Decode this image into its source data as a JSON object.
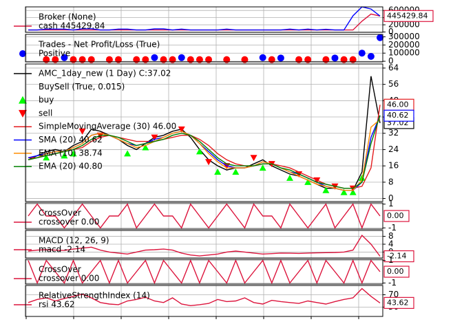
{
  "chart_data": [
    {
      "type": "line",
      "ylim": [
        -10000,
        700000
      ],
      "yticks": [
        0,
        200000,
        400000,
        600000
      ],
      "grid": true,
      "series": [
        {
          "heading": "Broker (None)",
          "name": "cash 445429.84",
          "color": "#dc143c",
          "marker": "line",
          "end_label": "445429.84",
          "values": [
            55000,
            55000,
            55000,
            55000,
            55000,
            55000,
            55000,
            55000,
            55000,
            55000,
            55000,
            55000,
            55000,
            55000,
            55000,
            55000,
            55000,
            55000,
            55000,
            55000,
            55000,
            55000,
            55000,
            55000,
            55000,
            55000,
            55000,
            55000,
            55000,
            55000,
            55000,
            55000,
            55000,
            55000,
            55000,
            55000,
            55000,
            300000,
            500000,
            445429.84
          ]
        },
        {
          "color": "#0000ff",
          "marker": "line",
          "values": [
            55000,
            55000,
            80000,
            80000,
            80000,
            55000,
            90000,
            90000,
            55000,
            55000,
            80000,
            80000,
            55000,
            55000,
            85000,
            85000,
            55000,
            80000,
            55000,
            55000,
            55000,
            55000,
            80000,
            55000,
            55000,
            55000,
            55000,
            55000,
            55000,
            80000,
            55000,
            80000,
            55000,
            75000,
            55000,
            55000,
            450000,
            700000,
            640000,
            445429.84
          ]
        }
      ]
    },
    {
      "type": "scatter",
      "ylim": [
        -8000,
        330000
      ],
      "yticks": [
        0,
        100000,
        200000,
        300000
      ],
      "grid": true,
      "series": [
        {
          "heading": "Trades - Net Profit/Loss (True)",
          "name": "Positive",
          "color": "#0000ff",
          "marker": "circle",
          "values": [
            null,
            null,
            null,
            null,
            45000,
            null,
            null,
            null,
            null,
            null,
            null,
            null,
            null,
            null,
            45000,
            null,
            null,
            45000,
            null,
            null,
            null,
            null,
            null,
            null,
            null,
            null,
            45000,
            null,
            40000,
            null,
            null,
            null,
            null,
            null,
            40000,
            null,
            null,
            100000,
            60000,
            290000
          ]
        },
        {
          "color": "#ff0000",
          "marker": "circle",
          "values": [
            null,
            null,
            20000,
            20000,
            null,
            20000,
            20000,
            20000,
            null,
            20000,
            20000,
            null,
            20000,
            20000,
            null,
            20000,
            20000,
            null,
            20000,
            20000,
            20000,
            null,
            20000,
            null,
            20000,
            null,
            null,
            20000,
            null,
            null,
            20000,
            20000,
            null,
            20000,
            null,
            20000,
            20000,
            null,
            null,
            null
          ]
        }
      ]
    },
    {
      "type": "line",
      "ylim": [
        -1.5,
        66
      ],
      "yticks": [
        0,
        8,
        16,
        24,
        32,
        40,
        48,
        56,
        64
      ],
      "grid": true,
      "series": [
        {
          "name": "AMC_1day_new (1 Day) C:37.02",
          "color": "#000000",
          "marker": "line",
          "end_label": "37.02",
          "values": [
            19,
            21,
            23,
            24,
            23,
            26,
            28,
            34,
            33,
            31,
            29,
            26,
            24,
            27,
            30,
            31,
            33,
            34,
            30,
            24,
            19,
            16,
            14,
            15,
            15,
            17,
            19,
            16,
            14,
            12,
            11,
            9,
            7,
            5,
            5,
            4,
            4,
            13,
            60,
            37.02
          ]
        },
        {
          "heading": "BuySell (True, 0.015)",
          "name": "buy",
          "color": "#00ff00",
          "marker": "triangle-up",
          "values": [
            null,
            null,
            20,
            null,
            21,
            22,
            null,
            null,
            null,
            null,
            null,
            22,
            null,
            25,
            null,
            null,
            null,
            null,
            null,
            23,
            null,
            13,
            null,
            13,
            null,
            null,
            15,
            null,
            null,
            10,
            null,
            8,
            null,
            4,
            null,
            3,
            3,
            10,
            null,
            null
          ]
        },
        {
          "name": "sell",
          "color": "#ff0000",
          "marker": "triangle-down",
          "values": [
            null,
            null,
            null,
            null,
            null,
            null,
            33,
            null,
            31,
            null,
            null,
            null,
            null,
            null,
            30,
            null,
            null,
            34,
            null,
            null,
            18,
            null,
            16,
            null,
            null,
            20,
            null,
            17,
            null,
            null,
            12,
            null,
            9,
            null,
            6,
            null,
            5,
            null,
            null,
            null
          ]
        },
        {
          "name": "SimpleMovingAverage (30) 46.00",
          "color": "#e41a1c",
          "marker": "line",
          "end_label": "46.00",
          "values": [
            20,
            20,
            21,
            22,
            23,
            24,
            25,
            28,
            30,
            31,
            30,
            29,
            28,
            28,
            28,
            29,
            30,
            31,
            31,
            29,
            26,
            22,
            19,
            17,
            16,
            16,
            17,
            17,
            16,
            15,
            13,
            11,
            9,
            7,
            6,
            5,
            5,
            6,
            15,
            46
          ]
        },
        {
          "name": "SMA (20) 40.62",
          "color": "#0000ff",
          "marker": "line",
          "end_label": "40.62",
          "values": [
            20,
            21,
            22,
            23,
            23,
            25,
            27,
            31,
            32,
            31,
            29,
            27,
            26,
            27,
            29,
            30,
            32,
            33,
            31,
            27,
            23,
            19,
            16,
            15,
            15,
            16,
            18,
            17,
            15,
            13,
            12,
            10,
            8,
            6,
            5,
            4,
            4,
            8,
            30,
            40.62
          ]
        },
        {
          "name": "EMA (10) 38.74",
          "color": "#ff8c00",
          "marker": "line",
          "values": [
            19,
            20,
            22,
            23,
            23,
            25,
            27,
            31,
            32,
            31,
            29,
            27,
            25,
            26,
            28,
            30,
            32,
            33,
            31,
            27,
            22,
            18,
            15,
            15,
            15,
            16,
            18,
            17,
            15,
            13,
            11,
            9,
            7,
            6,
            5,
            4,
            4,
            9,
            35,
            38.74
          ]
        },
        {
          "name": "EMA (20) 40.80",
          "color": "#008000",
          "marker": "line",
          "values": [
            19,
            20,
            21,
            22,
            23,
            24,
            26,
            29,
            31,
            31,
            30,
            28,
            26,
            27,
            28,
            29,
            31,
            32,
            31,
            28,
            24,
            20,
            17,
            16,
            16,
            16,
            17,
            17,
            15,
            14,
            12,
            10,
            8,
            7,
            6,
            5,
            5,
            8,
            27,
            40.8
          ]
        }
      ]
    },
    {
      "type": "line",
      "ylim": [
        -1.1,
        1.1
      ],
      "yticks": [
        -1,
        1
      ],
      "grid": true,
      "series": [
        {
          "heading": "CrossOver",
          "name": "crossover 0.00",
          "color": "#dc143c",
          "marker": "line",
          "end_label": "0.00",
          "values": [
            0,
            1,
            0,
            0,
            -1,
            0,
            1,
            0,
            -1,
            0,
            0,
            1,
            -1,
            0,
            1,
            0,
            0,
            -1,
            1,
            0,
            -1,
            0,
            1,
            0,
            -1,
            1,
            0,
            0,
            -1,
            1,
            0,
            -1,
            0,
            1,
            -1,
            0,
            1,
            -1,
            1,
            0
          ]
        }
      ]
    },
    {
      "type": "line",
      "ylim": [
        -3,
        11
      ],
      "yticks": [
        0,
        4,
        8
      ],
      "grid": true,
      "series": [
        {
          "heading": "MACD (12, 26, 9)",
          "name": "macd -2.14",
          "color": "#dc143c",
          "marker": "line",
          "end_label": "-2.14",
          "values": [
            0.5,
            1,
            1.2,
            1,
            0.8,
            1.5,
            2,
            2.5,
            1,
            0,
            -0.5,
            -1,
            0,
            1,
            1.2,
            1.5,
            1,
            -0.5,
            -1.5,
            -2,
            -1.5,
            -1,
            0,
            0.5,
            0,
            -0.5,
            -1,
            -0.8,
            -0.5,
            -0.6,
            -0.7,
            -0.5,
            -0.4,
            -0.3,
            -0.2,
            0,
            1,
            8.5,
            4,
            -2.14
          ]
        }
      ]
    },
    {
      "type": "line",
      "ylim": [
        -1.1,
        1.1
      ],
      "yticks": [
        -1,
        1
      ],
      "grid": true,
      "series": [
        {
          "heading": "CrossOver",
          "name": "crossover 0.00",
          "color": "#dc143c",
          "marker": "line",
          "end_label": "0.00",
          "values": [
            1,
            -1,
            1,
            0,
            -1,
            1,
            -1,
            0,
            1,
            -1,
            1,
            -1,
            0,
            1,
            -1,
            1,
            0,
            -1,
            1,
            -1,
            1,
            0,
            -1,
            1,
            -1,
            0,
            1,
            -1,
            1,
            -1,
            0,
            1,
            -1,
            1,
            0,
            -1,
            1,
            -1,
            1,
            0
          ]
        }
      ]
    },
    {
      "type": "line",
      "ylim": [
        0,
        100
      ],
      "yticks": [
        30,
        70
      ],
      "grid": true,
      "series": [
        {
          "heading": "RelativeStrengthIndex (14)",
          "name": "rsi 43.62",
          "color": "#dc143c",
          "marker": "line",
          "end_label": "43.62",
          "values": [
            45,
            55,
            60,
            50,
            58,
            65,
            72,
            60,
            45,
            40,
            38,
            50,
            55,
            62,
            50,
            45,
            60,
            40,
            35,
            38,
            42,
            55,
            48,
            50,
            60,
            45,
            40,
            52,
            48,
            45,
            42,
            50,
            45,
            40,
            48,
            55,
            60,
            90,
            65,
            43.62
          ]
        }
      ]
    }
  ]
}
